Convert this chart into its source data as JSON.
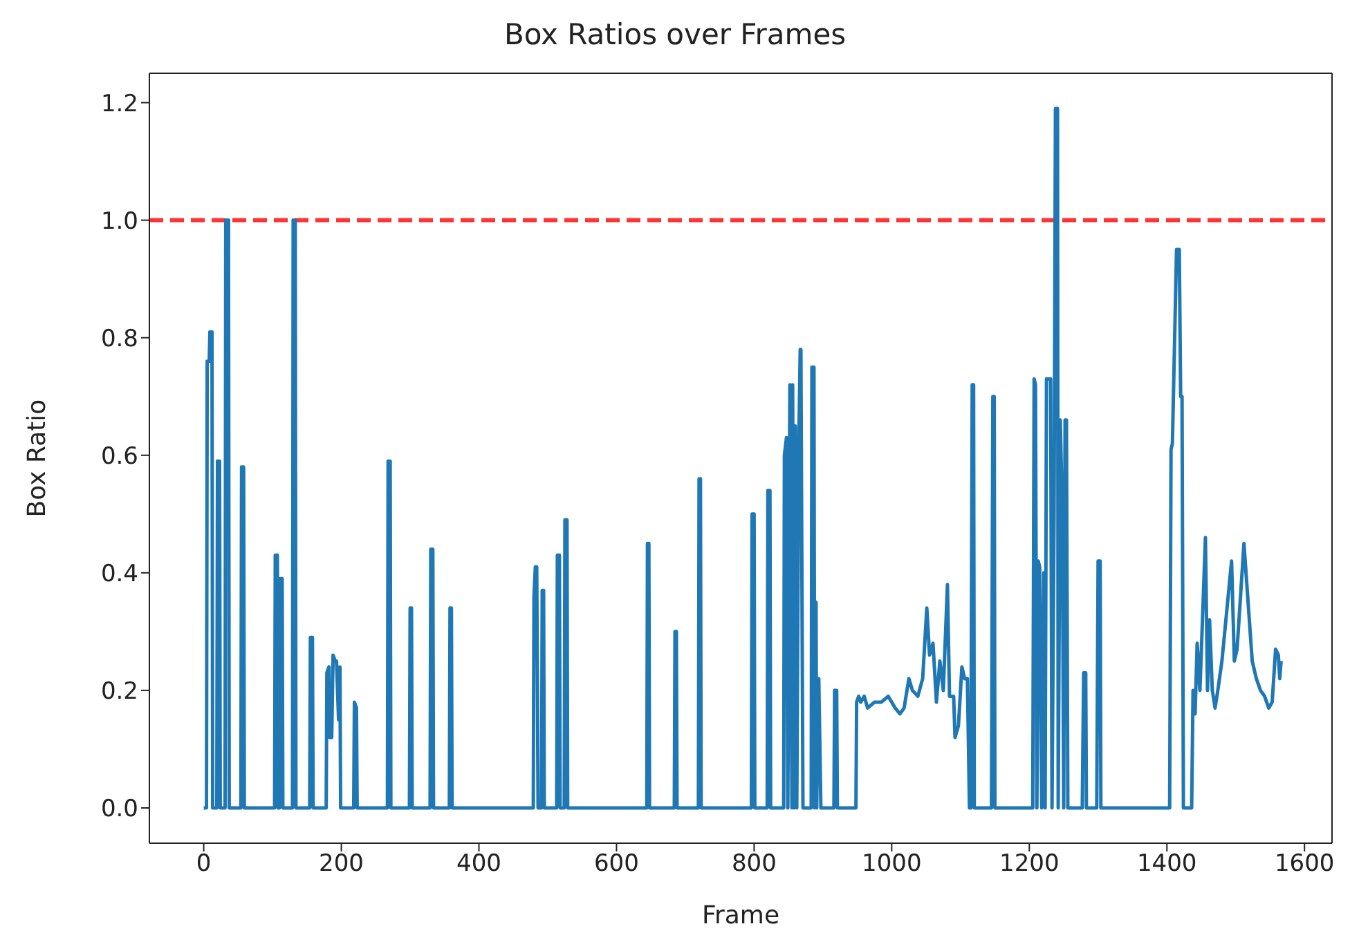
{
  "chart_data": {
    "type": "line",
    "title": "Box Ratios over Frames",
    "xlabel": "Frame",
    "ylabel": "Box Ratio",
    "xlim": [
      -79,
      1640
    ],
    "ylim": [
      -0.06,
      1.25
    ],
    "xticks": [
      0,
      200,
      400,
      600,
      800,
      1000,
      1200,
      1400,
      1600
    ],
    "yticks": [
      {
        "value": 0,
        "label": "0.0"
      },
      0.2,
      0.4,
      0.6,
      0.8,
      {
        "value": 1,
        "label": "1.0"
      },
      1.2
    ],
    "grid": false,
    "legend": false,
    "marker": "none",
    "line_style": "solid",
    "ref_lines": [
      {
        "axis": "y",
        "value": 1.0,
        "color": "#ff3333",
        "line_style": "dashed"
      }
    ],
    "series": [
      {
        "color": "#1f77b4",
        "x": [
          0,
          4,
          5,
          8,
          9,
          12,
          13,
          19,
          20,
          23,
          24,
          31,
          32,
          36,
          37,
          54,
          55,
          58,
          59,
          103,
          104,
          107,
          108,
          110,
          111,
          114,
          115,
          129,
          130,
          133,
          134,
          154,
          155,
          158,
          159,
          178,
          179,
          182,
          183,
          186,
          188,
          191,
          193,
          196,
          198,
          199,
          218,
          219,
          222,
          223,
          267,
          268,
          271,
          272,
          299,
          300,
          302,
          303,
          329,
          330,
          333,
          334,
          357,
          358,
          360,
          361,
          479,
          480,
          482,
          484,
          486,
          491,
          492,
          494,
          495,
          513,
          514,
          517,
          518,
          524,
          525,
          528,
          529,
          644,
          645,
          647,
          648,
          684,
          685,
          687,
          688,
          719,
          720,
          722,
          723,
          796,
          797,
          800,
          801,
          819,
          820,
          823,
          824,
          843,
          844,
          847,
          849,
          852,
          855,
          856,
          858,
          860,
          862,
          865,
          867,
          868,
          871,
          872,
          883,
          884,
          887,
          888,
          890,
          891,
          893,
          894,
          897,
          898,
          916,
          917,
          920,
          921,
          948,
          949,
          952,
          955,
          960,
          965,
          975,
          985,
          995,
          1005,
          1012,
          1018,
          1025,
          1030,
          1038,
          1045,
          1051,
          1055,
          1060,
          1065,
          1070,
          1075,
          1081,
          1084,
          1090,
          1092,
          1097,
          1102,
          1106,
          1110,
          1113,
          1115,
          1117,
          1119,
          1120,
          1145,
          1147,
          1149,
          1150,
          1205,
          1207,
          1209,
          1211,
          1213,
          1215,
          1218,
          1221,
          1223,
          1225,
          1228,
          1231,
          1233,
          1236,
          1238,
          1241,
          1242,
          1245,
          1248,
          1250,
          1252,
          1254,
          1256,
          1277,
          1279,
          1282,
          1283,
          1298,
          1300,
          1303,
          1304,
          1404,
          1406,
          1408,
          1414,
          1418,
          1420,
          1422,
          1424,
          1436,
          1438,
          1441,
          1444,
          1448,
          1456,
          1459,
          1462,
          1466,
          1470,
          1474,
          1480,
          1494,
          1498,
          1502,
          1512,
          1518,
          1524,
          1530,
          1536,
          1542,
          1548,
          1553,
          1558,
          1562,
          1564,
          1566
        ],
        "values": [
          0,
          0,
          0.76,
          0.76,
          0.81,
          0.81,
          0,
          0,
          0.59,
          0.59,
          0,
          0,
          1.0,
          1.0,
          0,
          0,
          0.58,
          0.58,
          0,
          0,
          0.43,
          0.43,
          0,
          0,
          0.39,
          0.39,
          0,
          0,
          1.0,
          1.0,
          0,
          0,
          0.29,
          0.29,
          0,
          0,
          0.23,
          0.24,
          0.12,
          0.12,
          0.26,
          0.25,
          0.25,
          0.15,
          0.24,
          0,
          0,
          0.18,
          0.17,
          0,
          0,
          0.59,
          0.59,
          0,
          0,
          0.34,
          0.34,
          0,
          0,
          0.44,
          0.44,
          0,
          0,
          0.34,
          0.34,
          0,
          0,
          0.36,
          0.41,
          0.41,
          0,
          0,
          0.37,
          0.37,
          0,
          0,
          0.43,
          0.43,
          0,
          0,
          0.49,
          0.49,
          0,
          0,
          0.45,
          0.45,
          0,
          0,
          0.3,
          0.3,
          0,
          0,
          0.56,
          0.56,
          0,
          0,
          0.5,
          0.5,
          0,
          0,
          0.54,
          0.54,
          0,
          0,
          0.6,
          0.63,
          0,
          0.72,
          0,
          0.72,
          0,
          0.65,
          0,
          0.62,
          0.78,
          0.78,
          0,
          0,
          0,
          0.75,
          0.75,
          0,
          0.35,
          0,
          0.22,
          0.22,
          0,
          0,
          0,
          0.2,
          0.2,
          0,
          0,
          0.18,
          0.19,
          0.18,
          0.19,
          0.17,
          0.18,
          0.18,
          0.19,
          0.17,
          0.16,
          0.17,
          0.22,
          0.2,
          0.19,
          0.22,
          0.34,
          0.26,
          0.28,
          0.18,
          0.25,
          0.2,
          0.38,
          0.19,
          0.19,
          0.12,
          0.14,
          0.24,
          0.22,
          0.22,
          0,
          0,
          0.72,
          0.72,
          0,
          0,
          0.7,
          0.7,
          0,
          0,
          0.73,
          0.72,
          0,
          0.42,
          0.41,
          0,
          0.4,
          0,
          0.73,
          0.73,
          0.73,
          0,
          0.5,
          1.19,
          1.19,
          0,
          0.66,
          0.5,
          0,
          0.66,
          0.66,
          0,
          0,
          0.23,
          0.23,
          0,
          0,
          0.42,
          0.42,
          0,
          0,
          0.61,
          0.62,
          0.95,
          0.95,
          0.7,
          0.7,
          0,
          0,
          0.2,
          0.16,
          0.28,
          0.2,
          0.46,
          0.2,
          0.32,
          0.2,
          0.17,
          0.2,
          0.25,
          0.42,
          0.25,
          0.27,
          0.45,
          0.35,
          0.25,
          0.22,
          0.2,
          0.19,
          0.17,
          0.18,
          0.27,
          0.26,
          0.22,
          0.25
        ]
      }
    ]
  }
}
